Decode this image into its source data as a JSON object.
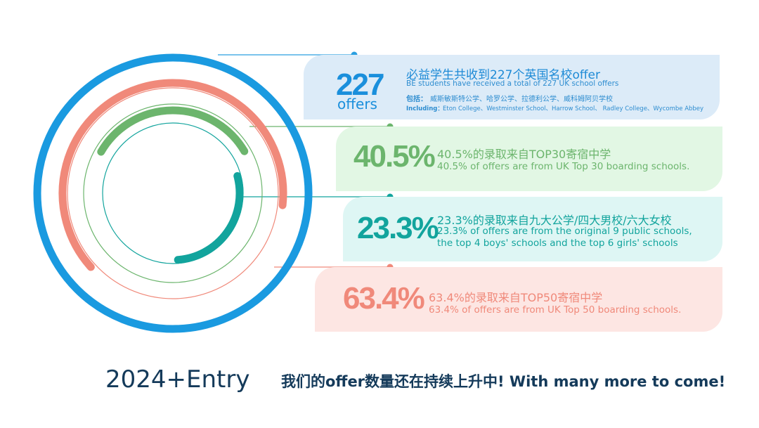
{
  "chart_data": {
    "type": "radial-bar",
    "total_offers": 227,
    "series": [
      {
        "value": 40.5,
        "unit": "%",
        "color": "#6cb56d"
      },
      {
        "value": 23.3,
        "unit": "%",
        "color": "#12a49d"
      },
      {
        "value": 63.4,
        "unit": "%",
        "color": "#f0897a"
      },
      {
        "value": 100,
        "unit": "%",
        "color": "#1a9ae0"
      }
    ]
  },
  "cards": {
    "total": {
      "number": "227",
      "unit": "offers",
      "title_cn": "必益学生共收到227个英国名校offer",
      "title_en": "BE students have received a total of 227 UK school offers",
      "includes_cn_label": "包括：",
      "includes_cn": "威斯敏斯特公学、哈罗公学、拉德利公学、威科姆阿贝学校",
      "includes_en_label": "Including：",
      "includes_en": "Eton College、Westminster School、Harrow School、 Radley College、Wycombe Abbey"
    },
    "top30": {
      "number": "40.5%",
      "text_cn": "40.5%的录取来自TOP30寄宿中学",
      "text_en": "40.5% of offers are from UK Top 30 boarding schools."
    },
    "nine": {
      "number": "23.3%",
      "text_cn": "23.3%的录取来自九大公学/四大男校/六大女校",
      "text_en_line1": "23.3% of offers are from the original 9 public schools,",
      "text_en_line2": "the top 4 boys' schools and the top 6 girls' schools"
    },
    "top50": {
      "number": "63.4%",
      "text_cn": "63.4%的录取来自TOP50寄宿中学",
      "text_en": "63.4% of offers are from UK Top 50 boarding schools."
    }
  },
  "footer": {
    "year": "2024+Entry",
    "note": "我们的offer数量还在持续上升中!  With many more to come!"
  }
}
